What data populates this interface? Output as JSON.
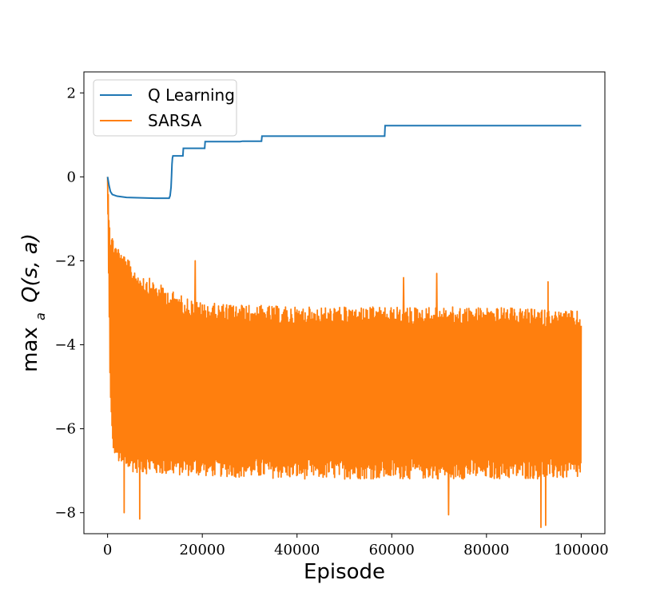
{
  "chart_data": {
    "type": "line",
    "title": "",
    "xlabel": "Episode",
    "ylabel": "max_a Q(s, a)",
    "ylabel_parts": {
      "main": "max",
      "sub": "a",
      "func": "Q(s, a)"
    },
    "xlim": [
      -5000,
      105000
    ],
    "ylim": [
      -8.5,
      2.5
    ],
    "xticks": [
      0,
      20000,
      40000,
      60000,
      80000,
      100000
    ],
    "yticks": [
      2,
      0,
      -2,
      -4,
      -6,
      -8
    ],
    "ytick_labels": [
      "2",
      "0",
      "−2",
      "−4",
      "−6",
      "−8"
    ],
    "grid": false,
    "legend_position": "top-left",
    "series": [
      {
        "name": "Q Learning",
        "color": "#1f77b4",
        "x": [
          0,
          300,
          600,
          1000,
          2000,
          4000,
          7000,
          10000,
          13000,
          13200,
          13400,
          13500,
          13600,
          13700,
          13800,
          14000,
          15900,
          16000,
          20500,
          20600,
          28000,
          28500,
          32500,
          32600,
          58500,
          58600,
          100000
        ],
        "y": [
          0,
          -0.2,
          -0.35,
          -0.42,
          -0.46,
          -0.49,
          -0.5,
          -0.51,
          -0.51,
          -0.45,
          -0.25,
          0.0,
          0.3,
          0.45,
          0.5,
          0.5,
          0.5,
          0.68,
          0.68,
          0.84,
          0.84,
          0.85,
          0.85,
          0.97,
          0.97,
          1.22,
          1.22
        ]
      },
      {
        "name": "SARSA",
        "color": "#ff7f0e",
        "x_range": [
          0,
          100000
        ],
        "n_points": 1400,
        "upper_envelope": [
          [
            0,
            0
          ],
          [
            200,
            -0.4
          ],
          [
            600,
            -1.3
          ],
          [
            1500,
            -1.5
          ],
          [
            3000,
            -1.8
          ],
          [
            6000,
            -2.2
          ],
          [
            10000,
            -2.5
          ],
          [
            15000,
            -2.8
          ],
          [
            20000,
            -3.0
          ],
          [
            40000,
            -3.1
          ],
          [
            60000,
            -3.1
          ],
          [
            80000,
            -3.1
          ],
          [
            100000,
            -3.2
          ]
        ],
        "lower_envelope": [
          [
            0,
            -0.5
          ],
          [
            200,
            -2.5
          ],
          [
            600,
            -5.5
          ],
          [
            1000,
            -6.5
          ],
          [
            3000,
            -7.0
          ],
          [
            10000,
            -7.1
          ],
          [
            40000,
            -7.2
          ],
          [
            100000,
            -7.2
          ]
        ],
        "spikes_low": [
          [
            3500,
            -8.0
          ],
          [
            6800,
            -8.15
          ],
          [
            62500,
            -8.25
          ],
          [
            91500,
            -8.35
          ],
          [
            92500,
            -8.3
          ],
          [
            72000,
            -8.05
          ]
        ],
        "spikes_high": [
          [
            18500,
            -2.0
          ],
          [
            62500,
            -2.4
          ],
          [
            69500,
            -2.3
          ],
          [
            93000,
            -2.5
          ]
        ]
      }
    ]
  }
}
